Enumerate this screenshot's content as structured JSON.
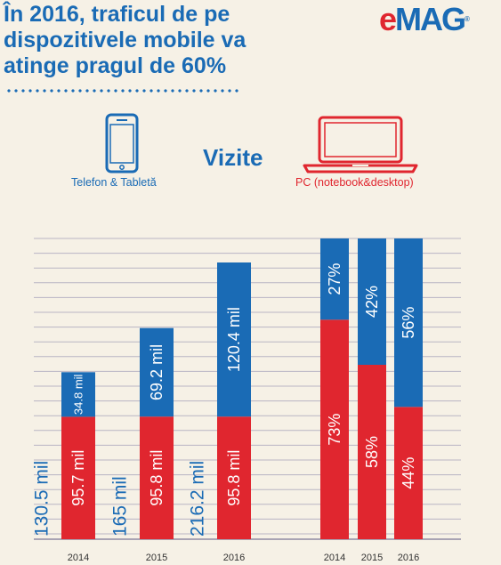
{
  "header": {
    "title_lines": [
      "În 2016, traficul de pe",
      "dispozitivele mobile va",
      "atinge pragul de 60%"
    ],
    "logo": {
      "mark": "e",
      "word": "MAG",
      "reg": "®"
    }
  },
  "legend": {
    "center_label": "Vizite",
    "mobile": {
      "label": "Telefon & Tabletă",
      "icon": "smartphone-icon",
      "color": "#1a6bb5"
    },
    "pc": {
      "label": "PC (notebook&desktop)",
      "icon": "laptop-icon",
      "color": "#e0262f"
    }
  },
  "chart_data": [
    {
      "type": "bar",
      "stacked": true,
      "categories": [
        "2014",
        "2015",
        "2016"
      ],
      "series": [
        {
          "values": [
            95.7,
            95.8,
            95.8
          ],
          "labels": [
            "95.7 mil",
            "95.8 mil",
            "95.8 mil"
          ],
          "color": "#e0262f"
        },
        {
          "values": [
            34.8,
            69.2,
            120.4
          ],
          "labels": [
            "34.8 mil",
            "69.2 mil",
            "120.4 mil"
          ],
          "color": "#1a6bb5"
        }
      ],
      "totals": [
        "130.5 mil",
        "165 mil",
        "216.2 mil"
      ],
      "ylim": [
        0,
        235
      ]
    },
    {
      "type": "bar",
      "stacked": true,
      "categories": [
        "2014",
        "2015",
        "2016"
      ],
      "series": [
        {
          "values": [
            73,
            58,
            44
          ],
          "labels": [
            "73%",
            "58%",
            "44%"
          ],
          "color": "#e0262f"
        },
        {
          "values": [
            27,
            42,
            56
          ],
          "labels": [
            "27%",
            "42%",
            "56%"
          ],
          "color": "#1a6bb5"
        }
      ],
      "ylim": [
        0,
        100
      ]
    }
  ]
}
